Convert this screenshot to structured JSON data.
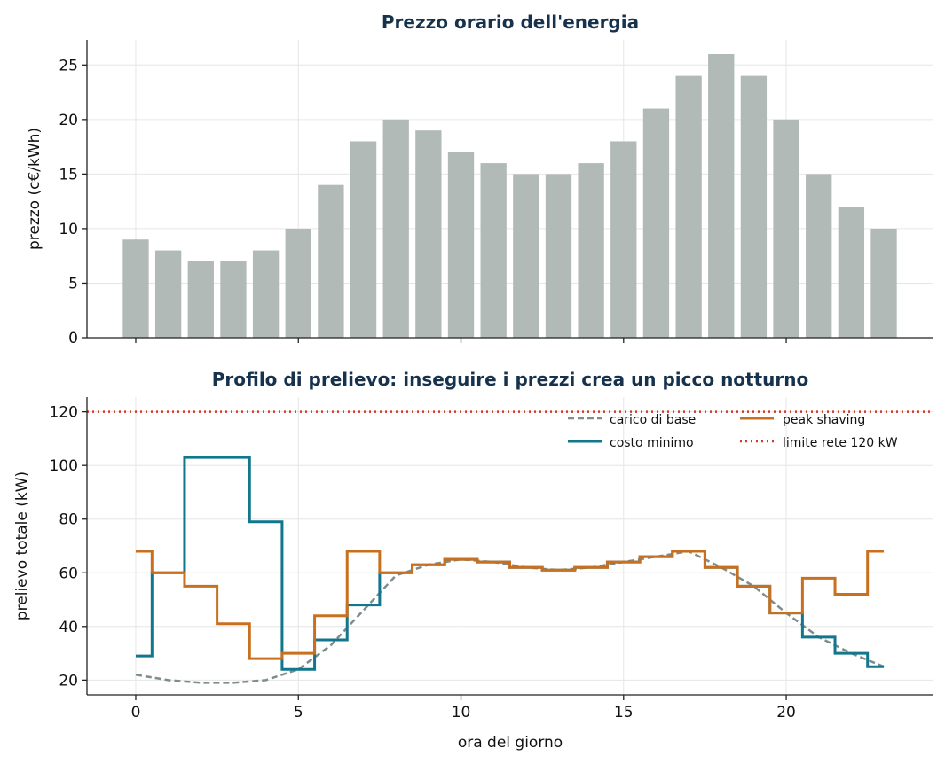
{
  "colors": {
    "bars": "#b2bab8",
    "baseline": "#7f8c8d",
    "min_cost": "#12768c",
    "peak_shaving": "#c8701f",
    "grid_limit": "#cf3a2a",
    "title": "#17324d"
  },
  "chart_data": [
    {
      "type": "bar",
      "title": "Prezzo orario dell'energia",
      "xlabel": "",
      "ylabel": "prezzo (c€/kWh)",
      "x": [
        0,
        1,
        2,
        3,
        4,
        5,
        6,
        7,
        8,
        9,
        10,
        11,
        12,
        13,
        14,
        15,
        16,
        17,
        18,
        19,
        20,
        21,
        22,
        23
      ],
      "values": [
        9,
        8,
        7,
        7,
        8,
        10,
        14,
        18,
        20,
        19,
        17,
        16,
        15,
        15,
        16,
        18,
        21,
        24,
        26,
        24,
        20,
        15,
        12,
        10
      ],
      "xlim": [
        -1.5,
        24.5
      ],
      "ylim": [
        0,
        27.3
      ],
      "xticks": [
        5,
        10,
        15,
        20
      ],
      "yticks": [
        0,
        5,
        10,
        15,
        20,
        25
      ],
      "grid": true
    },
    {
      "type": "line",
      "title": "Profilo di prelievo: inseguire i prezzi crea un picco notturno",
      "xlabel": "ora del giorno",
      "ylabel": "prelievo totale (kW)",
      "xlim": [
        -1.5,
        24.5
      ],
      "ylim": [
        14.5,
        125.5
      ],
      "xticks": [
        0,
        5,
        10,
        15,
        20
      ],
      "yticks": [
        20,
        40,
        60,
        80,
        100,
        120
      ],
      "grid": true,
      "legend_position": "top-right",
      "x": [
        0,
        1,
        2,
        3,
        4,
        5,
        6,
        7,
        8,
        9,
        10,
        11,
        12,
        13,
        14,
        15,
        16,
        17,
        18,
        19,
        20,
        21,
        22,
        23
      ],
      "series": [
        {
          "name": "carico di base",
          "style": "dashed",
          "values": [
            22,
            20,
            19,
            19,
            20,
            24,
            33,
            46,
            59,
            63,
            65,
            64,
            62,
            61,
            62,
            64,
            66,
            68,
            62,
            55,
            45,
            36,
            30,
            25
          ]
        },
        {
          "name": "costo minimo",
          "style": "steps",
          "values": [
            29,
            60,
            103,
            103,
            79,
            24,
            35,
            48,
            60,
            63,
            65,
            64,
            62,
            61,
            62,
            64,
            66,
            68,
            62,
            55,
            45,
            36,
            30,
            25
          ]
        },
        {
          "name": "peak shaving",
          "style": "steps",
          "values": [
            68,
            60,
            55,
            41,
            28,
            30,
            44,
            68,
            60,
            63,
            65,
            64,
            62,
            61,
            62,
            64,
            66,
            68,
            62,
            55,
            45,
            58,
            52,
            68
          ]
        },
        {
          "name": "limite rete 120 kW",
          "style": "dotted",
          "hline": 120
        }
      ]
    }
  ]
}
